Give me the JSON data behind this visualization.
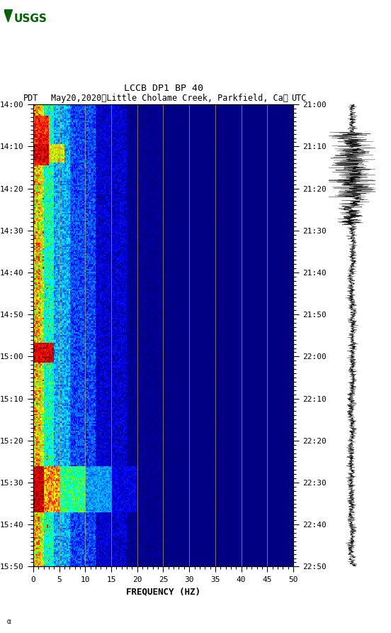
{
  "title_line1": "LCCB DP1 BP 40",
  "title_line2": "PDT  May20,2020　Little Cholame Creek, Parkfield, Ca、     UTC",
  "title2_left": "PDT",
  "title2_mid": "May20,2020　Little Cholame Creek, Parkfield, Ca、",
  "title2_right": "UTC",
  "xlabel": "FREQUENCY (HZ)",
  "freq_min": 0,
  "freq_max": 50,
  "left_yticks_labels": [
    "14:00",
    "14:10",
    "14:20",
    "14:30",
    "14:40",
    "14:50",
    "15:00",
    "15:10",
    "15:20",
    "15:30",
    "15:40",
    "15:50"
  ],
  "right_yticks_labels": [
    "21:00",
    "21:10",
    "21:20",
    "21:30",
    "21:40",
    "21:50",
    "22:00",
    "22:10",
    "22:20",
    "22:30",
    "22:40",
    "22:50"
  ],
  "xticks": [
    0,
    5,
    10,
    15,
    20,
    25,
    30,
    35,
    40,
    45,
    50
  ],
  "vertical_lines_freq": [
    5,
    10,
    15,
    20,
    25,
    30,
    35,
    40,
    45
  ],
  "vline_color": "#b8a060",
  "fig_bg": "#ffffff",
  "freq_bins": 250,
  "time_bins": 300
}
